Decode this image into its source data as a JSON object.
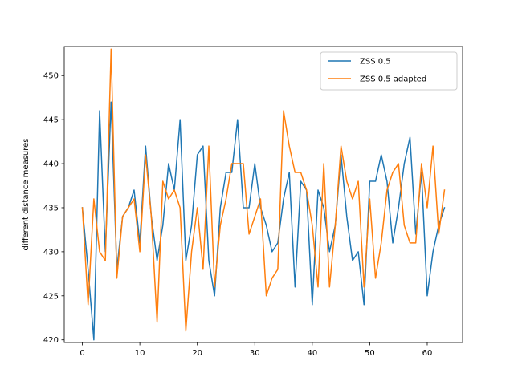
{
  "chart_data": {
    "type": "line",
    "title": "",
    "xlabel": "",
    "ylabel": "different distance measures",
    "xlim": [
      -3.15,
      66.15
    ],
    "ylim": [
      419.7,
      453.3
    ],
    "xticks": [
      0,
      10,
      20,
      30,
      40,
      50,
      60
    ],
    "yticks": [
      420,
      425,
      430,
      435,
      440,
      445,
      450
    ],
    "grid": false,
    "legend_position": "top-right",
    "x": [
      0,
      1,
      2,
      3,
      4,
      5,
      6,
      7,
      8,
      9,
      10,
      11,
      12,
      13,
      14,
      15,
      16,
      17,
      18,
      19,
      20,
      21,
      22,
      23,
      24,
      25,
      26,
      27,
      28,
      29,
      30,
      31,
      32,
      33,
      34,
      35,
      36,
      37,
      38,
      39,
      40,
      41,
      42,
      43,
      44,
      45,
      46,
      47,
      48,
      49,
      50,
      51,
      52,
      53,
      54,
      55,
      56,
      57,
      58,
      59,
      60,
      61,
      62,
      63
    ],
    "series": [
      {
        "name": "ZSS 0.5",
        "color": "#1f77b4",
        "values": [
          435,
          428,
          420,
          446,
          430,
          447,
          428,
          434,
          435,
          437,
          431,
          442,
          434,
          429,
          433,
          440,
          437,
          445,
          429,
          433,
          441,
          442,
          429,
          425,
          435,
          439,
          439,
          445,
          435,
          435,
          440,
          435,
          433,
          430,
          431,
          436,
          439,
          426,
          438,
          437,
          424,
          437,
          435,
          430,
          433,
          441,
          434,
          429,
          430,
          424,
          438,
          438,
          441,
          438,
          431,
          435,
          440,
          443,
          432,
          439,
          425,
          430,
          433,
          435
        ]
      },
      {
        "name": "ZSS 0.5 adapted",
        "color": "#ff7f0e",
        "values": [
          435,
          424,
          436,
          430,
          429,
          453,
          427,
          434,
          435,
          436,
          430,
          441,
          434,
          422,
          438,
          436,
          437,
          435,
          421,
          430,
          435,
          428,
          442,
          426,
          433,
          436,
          440,
          440,
          440,
          432,
          434,
          436,
          425,
          427,
          428,
          446,
          442,
          439,
          439,
          437,
          433,
          426,
          440,
          426,
          433,
          442,
          438,
          436,
          438,
          426,
          436,
          427,
          431,
          437,
          439,
          440,
          433,
          431,
          431,
          440,
          435,
          442,
          432,
          437
        ]
      }
    ]
  }
}
